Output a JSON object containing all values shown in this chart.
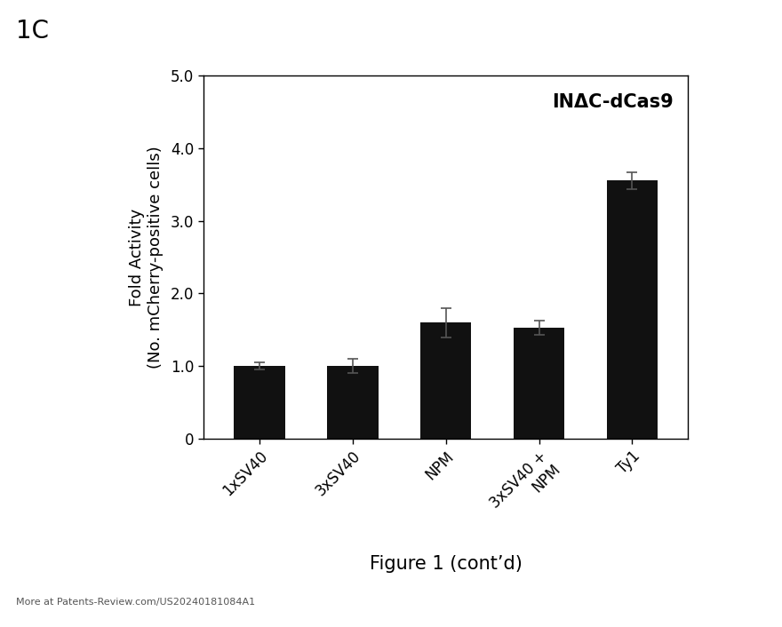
{
  "categories": [
    "1xSV40",
    "3xSV40",
    "NPM",
    "3xSV40 +\nNPM",
    "Ty1"
  ],
  "values": [
    1.0,
    1.0,
    1.6,
    1.53,
    3.55
  ],
  "errors": [
    0.05,
    0.1,
    0.2,
    0.1,
    0.12
  ],
  "bar_color": "#111111",
  "ylabel_line1": "Fold Activity",
  "ylabel_line2": "(No. mCherry-positive cells)",
  "ylim": [
    0,
    5.0
  ],
  "yticks": [
    0,
    1.0,
    2.0,
    3.0,
    4.0,
    5.0
  ],
  "ytick_labels": [
    "0",
    "1.0",
    "2.0",
    "3.0",
    "4.0",
    "5.0"
  ],
  "chart_title": "INΔC-dCas9",
  "panel_label": "1C",
  "figure_caption": "Figure 1 (cont’d)",
  "watermark": "More at Patents-Review.com/US20240181084A1",
  "background_color": "#ffffff",
  "chart_title_fontsize": 15,
  "ylabel_fontsize": 13,
  "tick_fontsize": 12,
  "panel_label_fontsize": 20,
  "caption_fontsize": 15,
  "watermark_fontsize": 8
}
